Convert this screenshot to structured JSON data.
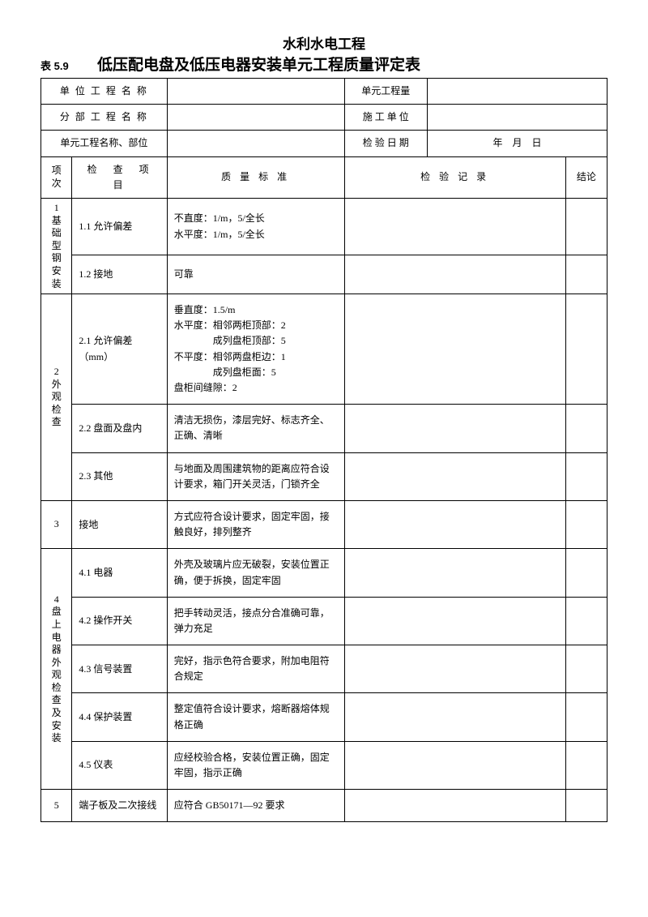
{
  "header": {
    "supertitle": "水利水电工程",
    "table_no": "表 5.9",
    "title": "低压配电盘及低压电器安装单元工程质量评定表"
  },
  "meta": {
    "unit_project_label": "单 位 工 程 名 称",
    "unit_project_value": "",
    "qty_label": "单元工程量",
    "qty_value": "",
    "sub_project_label": "分 部 工 程 名 称",
    "sub_project_value": "",
    "construction_unit_label": "施 工 单 位",
    "construction_unit_value": "",
    "element_label": "单元工程名称、部位",
    "element_value": "",
    "inspect_date_label": "检 验 日 期",
    "inspect_date_value": "年　月　日"
  },
  "columns": {
    "seq": "项次",
    "item": "检　查　项　目",
    "standard": "质 量 标 准",
    "record": "检 验 记 录",
    "conclusion": "结论"
  },
  "sections": [
    {
      "num": "1",
      "group": "基础型钢安装",
      "rows": [
        {
          "item": "1.1 允许偏差",
          "standard": "不直度：1/m，5/全长\n水平度：1/m，5/全长"
        },
        {
          "item": "1.2 接地",
          "standard": "可靠"
        }
      ]
    },
    {
      "num": "2",
      "group": "外观检查",
      "rows": [
        {
          "item": "2.1 允许偏差（mm）",
          "standard": "垂直度：1.5/m\n水平度：相邻两柜顶部：2\n　　　　成列盘柜顶部：5\n不平度：相邻两盘柜边：1\n　　　　成列盘柜面：5\n盘柜间缝隙：2"
        },
        {
          "item": "2.2 盘面及盘内",
          "standard": "清洁无损伤，漆层完好、标志齐全、正确、清晰"
        },
        {
          "item": "2.3 其他",
          "standard": "与地面及周围建筑物的距离应符合设计要求，箱门开关灵活，门锁齐全"
        }
      ]
    },
    {
      "num": "3",
      "group": "",
      "rows": [
        {
          "item": "接地",
          "standard": "方式应符合设计要求，固定牢固，接触良好，排列整齐"
        }
      ]
    },
    {
      "num": "4",
      "group": "盘上电器外观检查及安装",
      "rows": [
        {
          "item": "4.1 电器",
          "standard": "外壳及玻璃片应无破裂，安装位置正确，便于拆换，固定牢固"
        },
        {
          "item": "4.2 操作开关",
          "standard": "把手转动灵活，接点分合准确可靠，弹力充足"
        },
        {
          "item": "4.3 信号装置",
          "standard": "完好，指示色符合要求，附加电阻符合规定"
        },
        {
          "item": "4.4 保护装置",
          "standard": "整定值符合设计要求，熔断器熔体规格正确"
        },
        {
          "item": "4.5 仪表",
          "standard": "应经校验合格，安装位置正确，固定牢固，指示正确"
        }
      ]
    },
    {
      "num": "5",
      "group": "",
      "rows": [
        {
          "item": "端子板及二次接线",
          "standard": "应符合 GB50171—92 要求"
        }
      ]
    }
  ]
}
